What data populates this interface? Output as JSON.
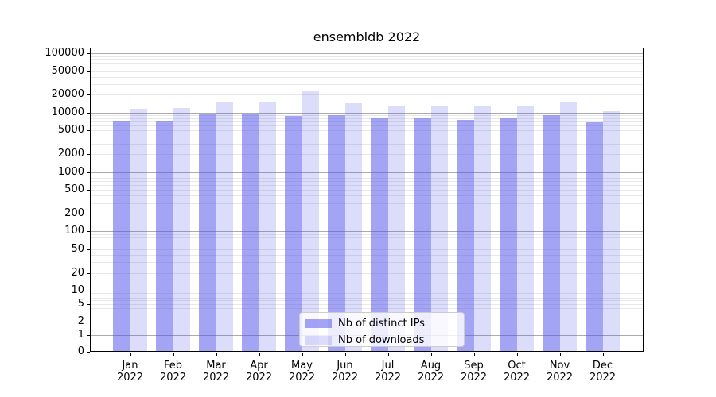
{
  "title": "ensembldb 2022",
  "chart_data": {
    "type": "bar",
    "title": "ensembldb 2022",
    "categories": [
      "Jan\n2022",
      "Feb\n2022",
      "Mar\n2022",
      "Apr\n2022",
      "May\n2022",
      "Jun\n2022",
      "Jul\n2022",
      "Aug\n2022",
      "Sep\n2022",
      "Oct\n2022",
      "Nov\n2022",
      "Dec\n2022"
    ],
    "series": [
      {
        "name": "Nb of distinct IPs",
        "color": "#5050EB85",
        "values": [
          7400,
          7200,
          9500,
          9700,
          8900,
          9100,
          8000,
          8400,
          7600,
          8400,
          9100,
          6800
        ]
      },
      {
        "name": "Nb of downloads",
        "color": "#5050EB33",
        "values": [
          11700,
          12000,
          15400,
          15100,
          23000,
          14600,
          12600,
          13300,
          12600,
          13200,
          14900,
          10700
        ]
      }
    ],
    "xlabel": "",
    "ylabel": "",
    "yscale": "symlog",
    "ylim": [
      0,
      125000
    ],
    "y_tick_labels": [
      100000,
      50000,
      20000,
      10000,
      5000,
      2000,
      1000,
      500,
      200,
      100,
      50,
      20,
      10,
      5,
      2,
      1,
      0
    ],
    "grid": "both",
    "legend_position": "lower center",
    "colors": {
      "major_grid": "#ababab",
      "minor_grid": "#e8e8e8",
      "axis": "#000000",
      "background": "#ffffff"
    }
  }
}
